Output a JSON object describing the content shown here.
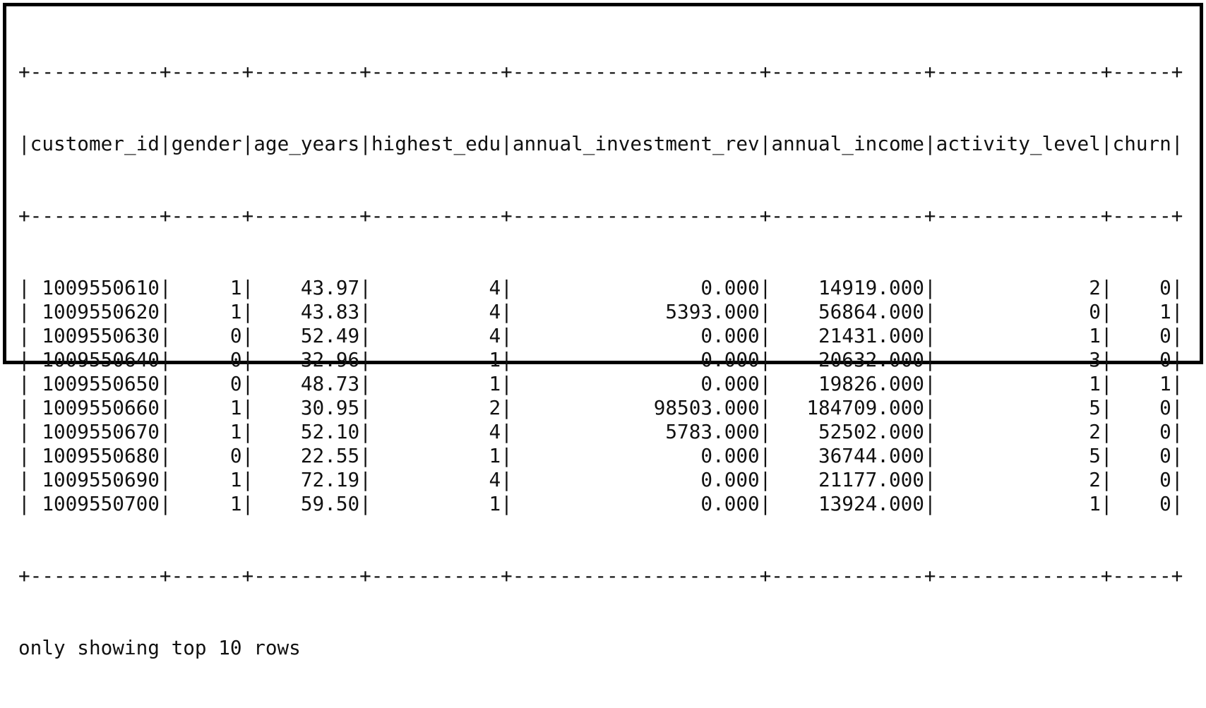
{
  "table": {
    "columns": [
      "customer_id",
      "gender",
      "age_years",
      "highest_edu",
      "annual_investment_rev",
      "annual_income",
      "activity_level",
      "churn"
    ],
    "rows": [
      [
        "1009550610",
        "1",
        "43.97",
        "4",
        "0.000",
        "14919.000",
        "2",
        "0"
      ],
      [
        "1009550620",
        "1",
        "43.83",
        "4",
        "5393.000",
        "56864.000",
        "0",
        "1"
      ],
      [
        "1009550630",
        "0",
        "52.49",
        "4",
        "0.000",
        "21431.000",
        "1",
        "0"
      ],
      [
        "1009550640",
        "0",
        "32.96",
        "1",
        "0.000",
        "20632.000",
        "3",
        "0"
      ],
      [
        "1009550650",
        "0",
        "48.73",
        "1",
        "0.000",
        "19826.000",
        "1",
        "1"
      ],
      [
        "1009550660",
        "1",
        "30.95",
        "2",
        "98503.000",
        "184709.000",
        "5",
        "0"
      ],
      [
        "1009550670",
        "1",
        "52.10",
        "4",
        "5783.000",
        "52502.000",
        "2",
        "0"
      ],
      [
        "1009550680",
        "0",
        "22.55",
        "1",
        "0.000",
        "36744.000",
        "5",
        "0"
      ],
      [
        "1009550690",
        "1",
        "72.19",
        "4",
        "0.000",
        "21177.000",
        "2",
        "0"
      ],
      [
        "1009550700",
        "1",
        "59.50",
        "1",
        "0.000",
        "13924.000",
        "1",
        "0"
      ]
    ]
  },
  "footer": {
    "message": "only showing top 10 rows"
  }
}
